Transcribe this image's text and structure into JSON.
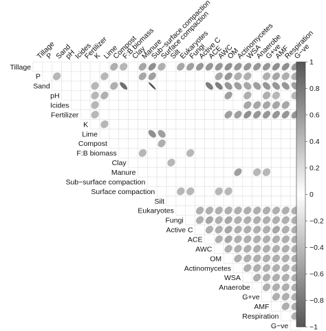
{
  "chart_data": {
    "type": "heatmap",
    "style": "upper-triangle ellipse correlation matrix",
    "variables": [
      "Tillage",
      "P",
      "Sand",
      "pH",
      "Icides",
      "Fertilizer",
      "K",
      "Lime",
      "Compost",
      "F:B biomass",
      "Clay",
      "Manure",
      "Sub−surface compaction",
      "Surface compaction",
      "Silt",
      "Eukaryotes",
      "Fungi",
      "Active C",
      "ACE",
      "AWC",
      "OM",
      "Actinomycetes",
      "WSA",
      "Anaerobe",
      "G+ve",
      "AMF",
      "Respiration",
      "G−ve"
    ],
    "colorbar": {
      "range": [
        -1,
        1
      ],
      "ticks": [
        "1",
        "0.8",
        "0.6",
        "0.4",
        "0.2",
        "0",
        "−0.2",
        "−0.4",
        "−0.6",
        "−0.8",
        "−1"
      ],
      "colors": {
        "negative": "#555555",
        "zero": "#ffffff",
        "positive": "#555555"
      }
    },
    "correlations": [
      {
        "pair": [
          "Tillage",
          "Compost"
        ],
        "r": 0.35
      },
      {
        "pair": [
          "Tillage",
          "F:B biomass"
        ],
        "r": 0.3
      },
      {
        "pair": [
          "Tillage",
          "Manure"
        ],
        "r": 0.4
      },
      {
        "pair": [
          "Tillage",
          "Sub−surface compaction"
        ],
        "r": 0.55
      },
      {
        "pair": [
          "Tillage",
          "Surface compaction"
        ],
        "r": 0.35
      },
      {
        "pair": [
          "Tillage",
          "Eukaryotes"
        ],
        "r": 0.4
      },
      {
        "pair": [
          "Tillage",
          "Fungi"
        ],
        "r": 0.45
      },
      {
        "pair": [
          "Tillage",
          "Active C"
        ],
        "r": 0.5
      },
      {
        "pair": [
          "Tillage",
          "ACE"
        ],
        "r": 0.5
      },
      {
        "pair": [
          "Tillage",
          "AWC"
        ],
        "r": 0.5
      },
      {
        "pair": [
          "Tillage",
          "OM"
        ],
        "r": 0.55
      },
      {
        "pair": [
          "Tillage",
          "Actinomycetes"
        ],
        "r": 0.5
      },
      {
        "pair": [
          "Tillage",
          "WSA"
        ],
        "r": 0.5
      },
      {
        "pair": [
          "Tillage",
          "Anaerobe"
        ],
        "r": 0.5
      },
      {
        "pair": [
          "Tillage",
          "G+ve"
        ],
        "r": 0.5
      },
      {
        "pair": [
          "Tillage",
          "AMF"
        ],
        "r": 0.55
      },
      {
        "pair": [
          "Tillage",
          "Respiration"
        ],
        "r": 0.55
      },
      {
        "pair": [
          "Tillage",
          "G−ve"
        ],
        "r": 0.5
      },
      {
        "pair": [
          "P",
          "Sand"
        ],
        "r": 0.3
      },
      {
        "pair": [
          "P",
          "Lime"
        ],
        "r": 0.3
      },
      {
        "pair": [
          "P",
          "Manure"
        ],
        "r": 0.4
      },
      {
        "pair": [
          "P",
          "Sub−surface compaction"
        ],
        "r": 0.45
      },
      {
        "pair": [
          "P",
          "AWC"
        ],
        "r": 0.4
      },
      {
        "pair": [
          "P",
          "OM"
        ],
        "r": 0.5
      },
      {
        "pair": [
          "P",
          "Actinomycetes"
        ],
        "r": 0.35
      },
      {
        "pair": [
          "P",
          "WSA"
        ],
        "r": 0.35
      },
      {
        "pair": [
          "P",
          "G+ve"
        ],
        "r": 0.35
      },
      {
        "pair": [
          "P",
          "AMF"
        ],
        "r": 0.4
      },
      {
        "pair": [
          "P",
          "Respiration"
        ],
        "r": 0.35
      },
      {
        "pair": [
          "P",
          "G−ve"
        ],
        "r": 0.35
      },
      {
        "pair": [
          "Sand",
          "K"
        ],
        "r": 0.3
      },
      {
        "pair": [
          "Sand",
          "Compost"
        ],
        "r": 0.35
      },
      {
        "pair": [
          "Sand",
          "F:B biomass"
        ],
        "r": -0.75
      },
      {
        "pair": [
          "Sand",
          "Sub−surface compaction"
        ],
        "r": -0.95
      },
      {
        "pair": [
          "Sand",
          "ACE"
        ],
        "r": -0.65
      },
      {
        "pair": [
          "Sand",
          "AWC"
        ],
        "r": -0.65
      },
      {
        "pair": [
          "Sand",
          "OM"
        ],
        "r": -0.5
      },
      {
        "pair": [
          "Sand",
          "Actinomycetes"
        ],
        "r": -0.45
      },
      {
        "pair": [
          "Sand",
          "WSA"
        ],
        "r": -0.4
      },
      {
        "pair": [
          "Sand",
          "Anaerobe"
        ],
        "r": -0.45
      },
      {
        "pair": [
          "Sand",
          "G+ve"
        ],
        "r": -0.5
      },
      {
        "pair": [
          "Sand",
          "AMF"
        ],
        "r": -0.5
      },
      {
        "pair": [
          "Sand",
          "Respiration"
        ],
        "r": -0.5
      },
      {
        "pair": [
          "Sand",
          "G−ve"
        ],
        "r": -0.45
      },
      {
        "pair": [
          "pH",
          "K"
        ],
        "r": 0.3
      },
      {
        "pair": [
          "pH",
          "Lime"
        ],
        "r": 0.35
      },
      {
        "pair": [
          "pH",
          "OM"
        ],
        "r": 0.45
      },
      {
        "pair": [
          "pH",
          "WSA"
        ],
        "r": 0.35
      },
      {
        "pair": [
          "pH",
          "G+ve"
        ],
        "r": 0.35
      },
      {
        "pair": [
          "pH",
          "AMF"
        ],
        "r": 0.3
      },
      {
        "pair": [
          "pH",
          "G−ve"
        ],
        "r": 0.3
      },
      {
        "pair": [
          "Icides",
          "K"
        ],
        "r": 0.3
      },
      {
        "pair": [
          "Icides",
          "WSA"
        ],
        "r": 0.4
      },
      {
        "pair": [
          "Icides",
          "Anaerobe"
        ],
        "r": 0.4
      },
      {
        "pair": [
          "Icides",
          "G+ve"
        ],
        "r": 0.4
      },
      {
        "pair": [
          "Icides",
          "AMF"
        ],
        "r": 0.4
      },
      {
        "pair": [
          "Icides",
          "Respiration"
        ],
        "r": 0.4
      },
      {
        "pair": [
          "Fertilizer",
          "K"
        ],
        "r": 0.3
      },
      {
        "pair": [
          "Fertilizer",
          "OM"
        ],
        "r": 0.45
      },
      {
        "pair": [
          "Fertilizer",
          "Actinomycetes"
        ],
        "r": 0.45
      },
      {
        "pair": [
          "Fertilizer",
          "WSA"
        ],
        "r": 0.55
      },
      {
        "pair": [
          "Fertilizer",
          "Anaerobe"
        ],
        "r": 0.5
      },
      {
        "pair": [
          "Fertilizer",
          "G+ve"
        ],
        "r": 0.5
      },
      {
        "pair": [
          "Fertilizer",
          "AMF"
        ],
        "r": 0.5
      },
      {
        "pair": [
          "Fertilizer",
          "Respiration"
        ],
        "r": 0.5
      },
      {
        "pair": [
          "Fertilizer",
          "G−ve"
        ],
        "r": 0.5
      },
      {
        "pair": [
          "K",
          "Lime"
        ],
        "r": 0.3
      },
      {
        "pair": [
          "Lime",
          "Sub−surface compaction"
        ],
        "r": -0.55
      },
      {
        "pair": [
          "Lime",
          "Surface compaction"
        ],
        "r": -0.45
      },
      {
        "pair": [
          "Compost",
          "Surface compaction"
        ],
        "r": 0.35
      },
      {
        "pair": [
          "F:B biomass",
          "Manure"
        ],
        "r": 0.3
      },
      {
        "pair": [
          "F:B biomass",
          "Fungi"
        ],
        "r": 0.3
      },
      {
        "pair": [
          "Clay",
          "Silt"
        ],
        "r": 0.3
      },
      {
        "pair": [
          "Manure",
          "Actinomycetes"
        ],
        "r": 0.45
      },
      {
        "pair": [
          "Manure",
          "Anaerobe"
        ],
        "r": 0.3
      },
      {
        "pair": [
          "Manure",
          "G+ve"
        ],
        "r": 0.3
      },
      {
        "pair": [
          "Surface compaction",
          "Eukaryotes"
        ],
        "r": 0.3
      },
      {
        "pair": [
          "Surface compaction",
          "Fungi"
        ],
        "r": 0.3
      },
      {
        "pair": [
          "Surface compaction",
          "AWC"
        ],
        "r": 0.3
      },
      {
        "pair": [
          "Surface compaction",
          "OM"
        ],
        "r": 0.3
      },
      {
        "pair": [
          "Eukaryotes",
          "Active C"
        ],
        "r": 0.35
      },
      {
        "pair": [
          "Eukaryotes",
          "ACE"
        ],
        "r": 0.35
      },
      {
        "pair": [
          "Eukaryotes",
          "AWC"
        ],
        "r": 0.35
      },
      {
        "pair": [
          "Eukaryotes",
          "OM"
        ],
        "r": 0.35
      },
      {
        "pair": [
          "Eukaryotes",
          "Actinomycetes"
        ],
        "r": 0.35
      },
      {
        "pair": [
          "Eukaryotes",
          "WSA"
        ],
        "r": 0.35
      },
      {
        "pair": [
          "Eukaryotes",
          "Anaerobe"
        ],
        "r": 0.35
      },
      {
        "pair": [
          "Eukaryotes",
          "G+ve"
        ],
        "r": 0.35
      },
      {
        "pair": [
          "Eukaryotes",
          "AMF"
        ],
        "r": 0.35
      },
      {
        "pair": [
          "Eukaryotes",
          "Respiration"
        ],
        "r": 0.35
      },
      {
        "pair": [
          "Eukaryotes",
          "G−ve"
        ],
        "r": 0.35
      },
      {
        "pair": [
          "Fungi",
          "Active C"
        ],
        "r": 0.35
      },
      {
        "pair": [
          "Fungi",
          "ACE"
        ],
        "r": 0.4
      },
      {
        "pair": [
          "Fungi",
          "AWC"
        ],
        "r": 0.35
      },
      {
        "pair": [
          "Fungi",
          "OM"
        ],
        "r": 0.4
      },
      {
        "pair": [
          "Fungi",
          "Actinomycetes"
        ],
        "r": 0.35
      },
      {
        "pair": [
          "Fungi",
          "WSA"
        ],
        "r": 0.35
      },
      {
        "pair": [
          "Fungi",
          "Anaerobe"
        ],
        "r": 0.35
      },
      {
        "pair": [
          "Fungi",
          "G+ve"
        ],
        "r": 0.35
      },
      {
        "pair": [
          "Fungi",
          "AMF"
        ],
        "r": 0.35
      },
      {
        "pair": [
          "Fungi",
          "Respiration"
        ],
        "r": 0.35
      },
      {
        "pair": [
          "Fungi",
          "G−ve"
        ],
        "r": 0.35
      },
      {
        "pair": [
          "Active C",
          "ACE"
        ],
        "r": 0.35
      },
      {
        "pair": [
          "Active C",
          "AWC"
        ],
        "r": 0.35
      },
      {
        "pair": [
          "Active C",
          "OM"
        ],
        "r": 0.4
      },
      {
        "pair": [
          "Active C",
          "Actinomycetes"
        ],
        "r": 0.35
      },
      {
        "pair": [
          "Active C",
          "WSA"
        ],
        "r": 0.35
      },
      {
        "pair": [
          "Active C",
          "Anaerobe"
        ],
        "r": 0.35
      },
      {
        "pair": [
          "Active C",
          "G+ve"
        ],
        "r": 0.35
      },
      {
        "pair": [
          "Active C",
          "AMF"
        ],
        "r": 0.4
      },
      {
        "pair": [
          "Active C",
          "Respiration"
        ],
        "r": 0.35
      },
      {
        "pair": [
          "Active C",
          "G−ve"
        ],
        "r": 0.35
      },
      {
        "pair": [
          "ACE",
          "AWC"
        ],
        "r": 0.35
      },
      {
        "pair": [
          "ACE",
          "OM"
        ],
        "r": 0.4
      },
      {
        "pair": [
          "ACE",
          "Actinomycetes"
        ],
        "r": 0.35
      },
      {
        "pair": [
          "ACE",
          "WSA"
        ],
        "r": 0.35
      },
      {
        "pair": [
          "ACE",
          "Anaerobe"
        ],
        "r": 0.35
      },
      {
        "pair": [
          "ACE",
          "G+ve"
        ],
        "r": 0.35
      },
      {
        "pair": [
          "ACE",
          "AMF"
        ],
        "r": 0.35
      },
      {
        "pair": [
          "ACE",
          "Respiration"
        ],
        "r": 0.35
      },
      {
        "pair": [
          "ACE",
          "G−ve"
        ],
        "r": 0.35
      },
      {
        "pair": [
          "AWC",
          "OM"
        ],
        "r": 0.35
      },
      {
        "pair": [
          "AWC",
          "Actinomycetes"
        ],
        "r": 0.35
      },
      {
        "pair": [
          "AWC",
          "WSA"
        ],
        "r": 0.35
      },
      {
        "pair": [
          "AWC",
          "Anaerobe"
        ],
        "r": 0.35
      },
      {
        "pair": [
          "AWC",
          "G+ve"
        ],
        "r": 0.35
      },
      {
        "pair": [
          "AWC",
          "AMF"
        ],
        "r": 0.35
      },
      {
        "pair": [
          "AWC",
          "Respiration"
        ],
        "r": 0.35
      },
      {
        "pair": [
          "AWC",
          "G−ve"
        ],
        "r": 0.35
      },
      {
        "pair": [
          "OM",
          "Actinomycetes"
        ],
        "r": 0.35
      },
      {
        "pair": [
          "OM",
          "WSA"
        ],
        "r": 0.35
      },
      {
        "pair": [
          "OM",
          "Anaerobe"
        ],
        "r": 0.35
      },
      {
        "pair": [
          "OM",
          "G+ve"
        ],
        "r": 0.35
      },
      {
        "pair": [
          "OM",
          "AMF"
        ],
        "r": 0.35
      },
      {
        "pair": [
          "OM",
          "Respiration"
        ],
        "r": 0.35
      },
      {
        "pair": [
          "OM",
          "G−ve"
        ],
        "r": 0.35
      },
      {
        "pair": [
          "Actinomycetes",
          "WSA"
        ],
        "r": 0.35
      },
      {
        "pair": [
          "Actinomycetes",
          "Anaerobe"
        ],
        "r": 0.35
      },
      {
        "pair": [
          "Actinomycetes",
          "G+ve"
        ],
        "r": 0.35
      },
      {
        "pair": [
          "Actinomycetes",
          "AMF"
        ],
        "r": 0.35
      },
      {
        "pair": [
          "Actinomycetes",
          "Respiration"
        ],
        "r": 0.35
      },
      {
        "pair": [
          "Actinomycetes",
          "G−ve"
        ],
        "r": 0.35
      },
      {
        "pair": [
          "WSA",
          "Anaerobe"
        ],
        "r": 0.35
      },
      {
        "pair": [
          "WSA",
          "G+ve"
        ],
        "r": 0.35
      },
      {
        "pair": [
          "WSA",
          "AMF"
        ],
        "r": 0.35
      },
      {
        "pair": [
          "WSA",
          "Respiration"
        ],
        "r": 0.35
      },
      {
        "pair": [
          "WSA",
          "G−ve"
        ],
        "r": 0.35
      },
      {
        "pair": [
          "Anaerobe",
          "G+ve"
        ],
        "r": 0.35
      },
      {
        "pair": [
          "Anaerobe",
          "AMF"
        ],
        "r": 0.35
      },
      {
        "pair": [
          "Anaerobe",
          "Respiration"
        ],
        "r": 0.35
      },
      {
        "pair": [
          "Anaerobe",
          "G−ve"
        ],
        "r": 0.35
      },
      {
        "pair": [
          "G+ve",
          "AMF"
        ],
        "r": 0.35
      },
      {
        "pair": [
          "G+ve",
          "Respiration"
        ],
        "r": 0.35
      },
      {
        "pair": [
          "G+ve",
          "G−ve"
        ],
        "r": 0.35
      },
      {
        "pair": [
          "AMF",
          "Respiration"
        ],
        "r": 0.35
      },
      {
        "pair": [
          "AMF",
          "G−ve"
        ],
        "r": 0.35
      },
      {
        "pair": [
          "Respiration",
          "G−ve"
        ],
        "r": 0.35
      }
    ]
  }
}
